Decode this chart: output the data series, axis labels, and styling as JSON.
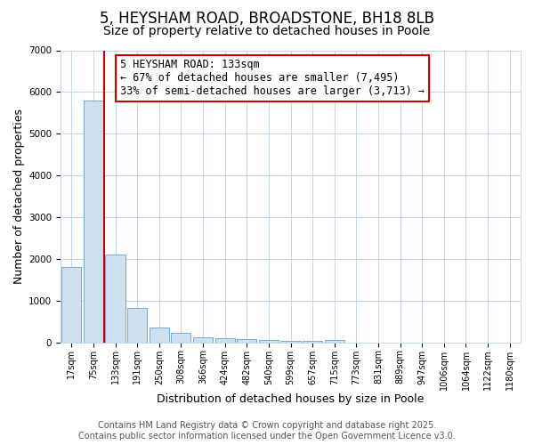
{
  "title": "5, HEYSHAM ROAD, BROADSTONE, BH18 8LB",
  "subtitle": "Size of property relative to detached houses in Poole",
  "xlabel": "Distribution of detached houses by size in Poole",
  "ylabel": "Number of detached properties",
  "categories": [
    "17sqm",
    "75sqm",
    "133sqm",
    "191sqm",
    "250sqm",
    "308sqm",
    "366sqm",
    "424sqm",
    "482sqm",
    "540sqm",
    "599sqm",
    "657sqm",
    "715sqm",
    "773sqm",
    "831sqm",
    "889sqm",
    "947sqm",
    "1006sqm",
    "1064sqm",
    "1122sqm",
    "1180sqm"
  ],
  "values": [
    1800,
    5800,
    2100,
    830,
    360,
    230,
    120,
    90,
    70,
    55,
    45,
    35,
    60,
    0,
    0,
    0,
    0,
    0,
    0,
    0,
    0
  ],
  "bar_color": "#cce0f0",
  "bar_edge_color": "#7aaccf",
  "red_line_x": 1.5,
  "ylim": [
    0,
    7000
  ],
  "yticks": [
    0,
    1000,
    2000,
    3000,
    4000,
    5000,
    6000,
    7000
  ],
  "annotation_text": "5 HEYSHAM ROAD: 133sqm\n← 67% of detached houses are smaller (7,495)\n33% of semi-detached houses are larger (3,713) →",
  "annotation_box_color": "#ffffff",
  "annotation_box_edge_color": "#cc0000",
  "footer_line1": "Contains HM Land Registry data © Crown copyright and database right 2025.",
  "footer_line2": "Contains public sector information licensed under the Open Government Licence v3.0.",
  "bg_color": "#ffffff",
  "plot_bg_color": "#ffffff",
  "grid_color": "#c5d5e5",
  "title_fontsize": 12,
  "subtitle_fontsize": 10,
  "tick_fontsize": 7,
  "label_fontsize": 9,
  "footer_fontsize": 7,
  "annot_fontsize": 8.5
}
